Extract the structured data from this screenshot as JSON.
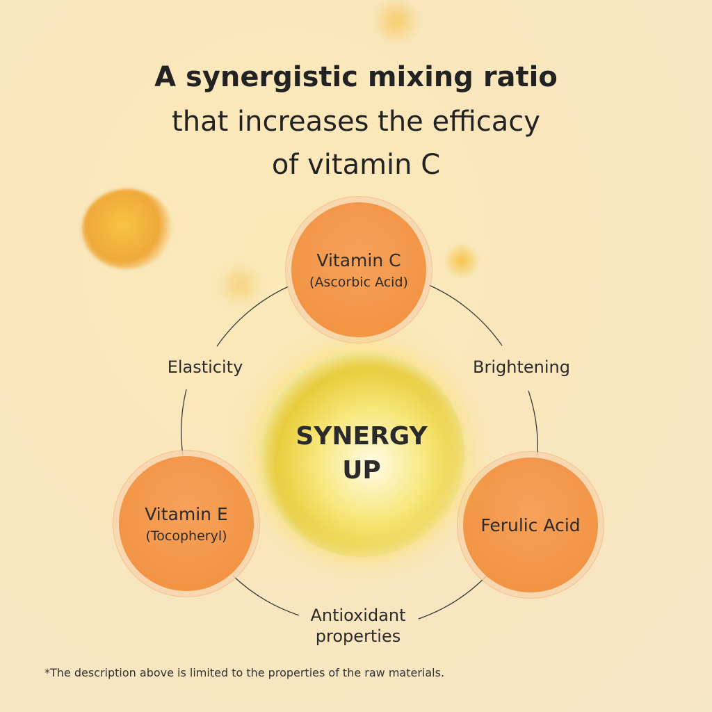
{
  "title": {
    "line1": "A synergistic mixing ratio",
    "line2": "that increases the efficacy",
    "line3": "of vitamin C"
  },
  "nodes": {
    "vitamin_c": {
      "name": "Vitamin C",
      "sub": "(Ascorbic Acid)"
    },
    "vitamin_e": {
      "name": "Vitamin E",
      "sub": "(Tocopheryl)"
    },
    "ferulic": {
      "name": "Ferulic Acid"
    }
  },
  "center": {
    "line1": "SYNERGY",
    "line2": "UP"
  },
  "links": {
    "elasticity": "Elasticity",
    "brightening": "Brightening",
    "antioxidant_1": "Antioxidant",
    "antioxidant_2": "properties"
  },
  "footnote": "*The description above is limited to the properties of the raw materials.",
  "colors": {
    "node": "#f29443",
    "background": "#f9e7bd",
    "text": "#222222"
  }
}
